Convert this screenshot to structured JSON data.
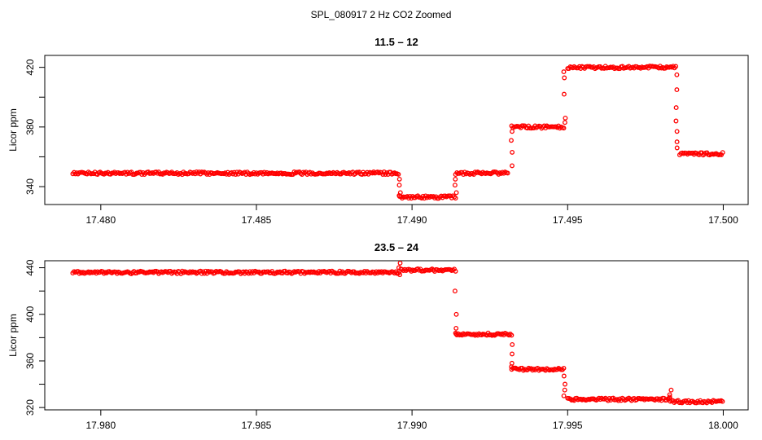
{
  "figure": {
    "title": "SPL_080917  2 Hz CO2 Zoomed"
  },
  "chart_data": [
    {
      "type": "scatter",
      "title": "11.5 – 12",
      "xlabel": "",
      "ylabel": "Licor ppm",
      "xlim": [
        17.4782,
        17.5008
      ],
      "ylim": [
        328,
        428
      ],
      "x_ticks": [
        17.48,
        17.485,
        17.49,
        17.495,
        17.5
      ],
      "x_tick_labels": [
        "17.480",
        "17.485",
        "17.490",
        "17.495",
        "17.500"
      ],
      "y_ticks": [
        340,
        360,
        380,
        400,
        420
      ],
      "y_tick_labels": [
        "340",
        "",
        "380",
        "",
        "420"
      ],
      "marker": "open-circle",
      "color": "#ff0000",
      "segments": [
        {
          "x0": 17.4791,
          "x1": 17.4896,
          "y": 349
        },
        {
          "x0": 17.4896,
          "x1": 17.4914,
          "y": 333
        },
        {
          "x0": 17.4914,
          "x1": 17.4931,
          "y": 349
        },
        {
          "x0": 17.4932,
          "x1": 17.4949,
          "y": 380
        },
        {
          "x0": 17.495,
          "x1": 17.4985,
          "y": 420
        },
        {
          "x0": 17.4986,
          "x1": 17.5,
          "y": 362
        }
      ],
      "transitions": [
        {
          "x": 17.4896,
          "y_values": [
            345,
            341,
            336,
            334
          ]
        },
        {
          "x": 17.4914,
          "y_values": [
            336,
            341,
            345
          ]
        },
        {
          "x": 17.4932,
          "y_values": [
            354,
            363,
            371,
            377
          ]
        },
        {
          "x": 17.4949,
          "y_values": [
            383,
            386,
            402,
            413,
            417
          ]
        },
        {
          "x": 17.4985,
          "y_values": [
            415,
            405,
            393,
            384,
            377,
            370,
            366
          ]
        }
      ]
    },
    {
      "type": "scatter",
      "title": "23.5 – 24",
      "xlabel": "",
      "ylabel": "Licor ppm",
      "xlim": [
        17.9782,
        18.0008
      ],
      "ylim": [
        318,
        446
      ],
      "x_ticks": [
        17.98,
        17.985,
        17.99,
        17.995,
        18.0
      ],
      "x_tick_labels": [
        "17.980",
        "17.985",
        "17.990",
        "17.995",
        "18.000"
      ],
      "y_ticks": [
        320,
        340,
        360,
        380,
        400,
        420,
        440
      ],
      "y_tick_labels": [
        "320",
        "",
        "360",
        "",
        "400",
        "",
        "440"
      ],
      "marker": "open-circle",
      "color": "#ff0000",
      "segments": [
        {
          "x0": 17.9791,
          "x1": 17.9896,
          "y": 436
        },
        {
          "x0": 17.9896,
          "x1": 17.9914,
          "y": 438
        },
        {
          "x0": 17.9914,
          "x1": 17.9932,
          "y": 383
        },
        {
          "x0": 17.9932,
          "x1": 17.9949,
          "y": 353
        },
        {
          "x0": 17.995,
          "x1": 17.9983,
          "y": 327
        },
        {
          "x0": 17.9983,
          "x1": 18.0,
          "y": 325
        }
      ],
      "transitions": [
        {
          "x": 17.9896,
          "y_values": [
            444,
            440,
            434
          ]
        },
        {
          "x": 17.9914,
          "y_values": [
            420,
            400,
            388,
            383
          ]
        },
        {
          "x": 17.9932,
          "y_values": [
            374,
            366,
            358,
            355
          ]
        },
        {
          "x": 17.9949,
          "y_values": [
            347,
            340,
            335,
            330
          ]
        },
        {
          "x": 17.9983,
          "y_values": [
            335,
            331,
            329
          ]
        }
      ]
    }
  ]
}
